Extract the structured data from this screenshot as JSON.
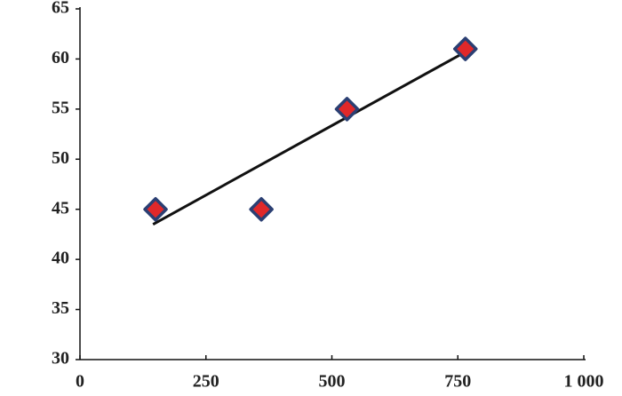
{
  "chart_data": {
    "type": "scatter",
    "x": [
      150,
      360,
      530,
      765
    ],
    "values": [
      45,
      45,
      55,
      61
    ],
    "color": "#e0282a",
    "edge_color": "#2b3f73",
    "trendline": {
      "x": [
        145,
        772
      ],
      "values": [
        43.5,
        60.9
      ],
      "color": "#111111"
    },
    "xlim": [
      0,
      1000
    ],
    "xticks": [
      0,
      250,
      500,
      750,
      {
        "value": 1000,
        "label": "1 000"
      }
    ],
    "ylim": [
      30,
      65
    ],
    "yticks": [
      30,
      35,
      40,
      45,
      50,
      55,
      60,
      65
    ],
    "grid": false
  }
}
